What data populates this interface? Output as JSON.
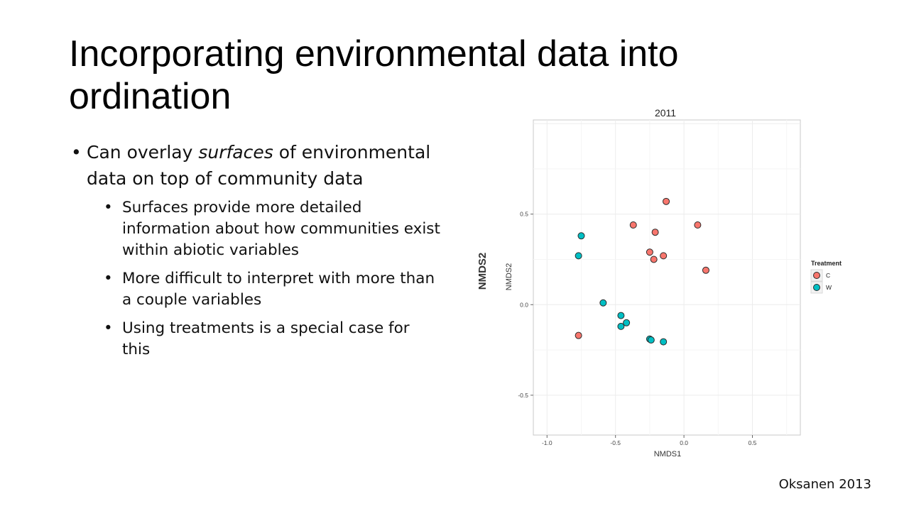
{
  "slide": {
    "title": "Incorporating environmental data into ordination",
    "bullet_main": {
      "before": "Can overlay ",
      "emph": "surfaces",
      "after": " of environmental data on top of community data"
    },
    "sub_bullets": [
      "Surfaces provide more detailed information about how communities exist within abiotic variables",
      "More difficult to interpret with more than a couple variables",
      "Using treatments is a special case for this"
    ],
    "credit": "Oksanen 2013"
  },
  "chart_data": {
    "type": "scatter",
    "title": "2011",
    "xlabel": "NMDS1",
    "ylabel": "NMDS2",
    "outer_ylabel": "NMDS2",
    "xlim": [
      -1.1,
      0.85
    ],
    "ylim": [
      -0.72,
      1.02
    ],
    "xticks": [
      -1.0,
      -0.5,
      0.0,
      0.5
    ],
    "xtick_labels": [
      "-1.0",
      "-0.5",
      "0.0",
      "0.5"
    ],
    "yticks": [
      -0.5,
      0.0,
      0.5
    ],
    "ytick_labels": [
      "-0.5",
      "0.0",
      "0.5"
    ],
    "grid": true,
    "legend": {
      "title": "Treatment",
      "placement": "right"
    },
    "series": [
      {
        "name": "C",
        "color": "#F8766D",
        "points": [
          [
            -0.13,
            0.57
          ],
          [
            -0.37,
            0.44
          ],
          [
            -0.21,
            0.4
          ],
          [
            0.1,
            0.44
          ],
          [
            -0.25,
            0.29
          ],
          [
            -0.15,
            0.27
          ],
          [
            -0.22,
            0.25
          ],
          [
            0.16,
            0.19
          ],
          [
            -0.77,
            -0.17
          ]
        ]
      },
      {
        "name": "W",
        "color": "#00BFC4",
        "points": [
          [
            -0.75,
            0.38
          ],
          [
            -0.77,
            0.27
          ],
          [
            -0.59,
            0.01
          ],
          [
            -0.46,
            -0.06
          ],
          [
            -0.42,
            -0.1
          ],
          [
            -0.46,
            -0.12
          ],
          [
            -0.25,
            -0.19
          ],
          [
            -0.24,
            -0.195
          ],
          [
            -0.15,
            -0.205
          ]
        ]
      }
    ]
  }
}
